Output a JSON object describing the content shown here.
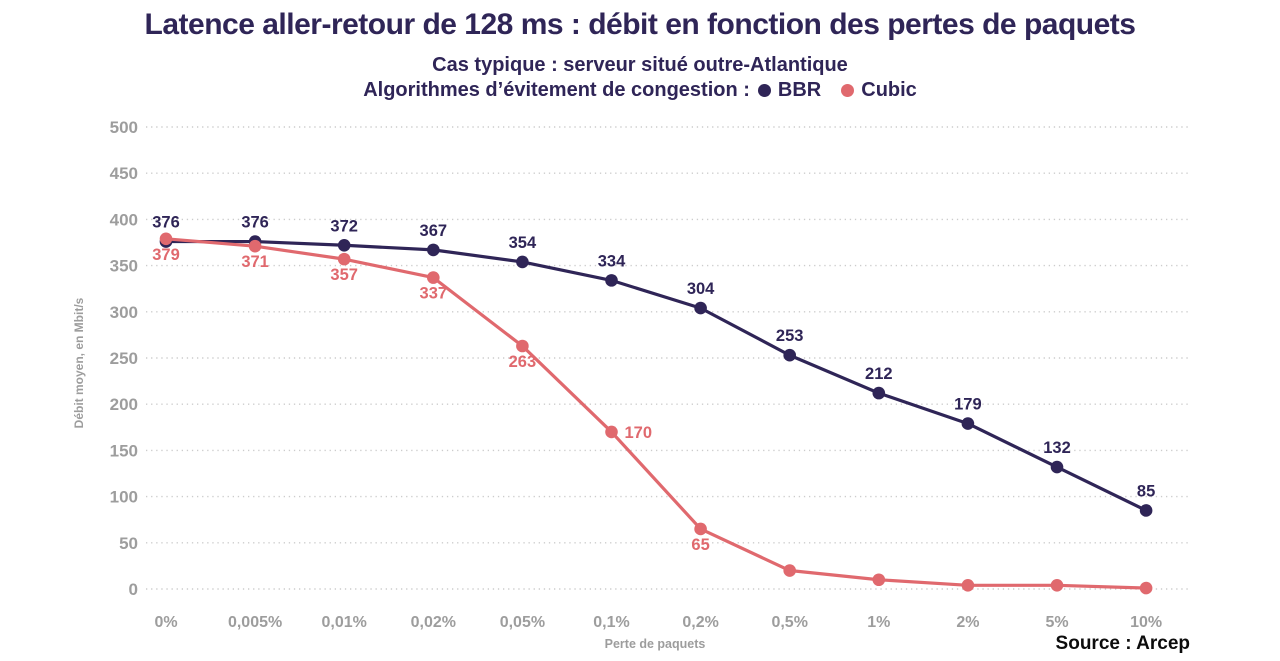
{
  "header": {
    "title": "Latence aller-retour de 128 ms : débit en fonction des pertes de paquets",
    "subtitle": "Cas typique : serveur situé outre-Atlantique",
    "legend_label": "Algorithmes d’évitement de congestion :"
  },
  "footer": {
    "source": "Source : Arcep"
  },
  "colors": {
    "navy": "#2f2557",
    "salmon": "#e0696e",
    "axis_gray": "#9d9d9d",
    "grid_gray": "#cccccc",
    "background": "#ffffff"
  },
  "chart_data": {
    "type": "line",
    "title": "Latence aller-retour de 128 ms : débit en fonction des pertes de paquets",
    "subtitle": "Cas typique : serveur situé outre-Atlantique",
    "xlabel": "Perte de paquets",
    "ylabel": "Débit moyen, en Mbit/s",
    "ylim": [
      0,
      500
    ],
    "ytick_step": 50,
    "grid": "horizontal-dotted",
    "legend_position": "top-inline-with-subtitle",
    "categories": [
      "0%",
      "0,005%",
      "0,01%",
      "0,02%",
      "0,05%",
      "0,1%",
      "0,2%",
      "0,5%",
      "1%",
      "2%",
      "5%",
      "10%"
    ],
    "series": [
      {
        "name": "BBR",
        "color": "#2f2557",
        "values": [
          376,
          376,
          372,
          367,
          354,
          334,
          304,
          253,
          212,
          179,
          132,
          85
        ],
        "label_pos": [
          "above",
          "above",
          "above",
          "above",
          "above",
          "above",
          "above",
          "above",
          "above",
          "above",
          "above",
          "above"
        ]
      },
      {
        "name": "Cubic",
        "color": "#e0696e",
        "values": [
          379,
          371,
          357,
          337,
          263,
          170,
          65,
          20,
          10,
          4,
          4,
          1
        ],
        "label_pos": [
          "below",
          "below",
          "below",
          "below",
          "below",
          "right",
          "below",
          null,
          null,
          null,
          null,
          null
        ],
        "note": "last five points are unlabeled in the chart; values estimated from gridlines"
      }
    ]
  }
}
